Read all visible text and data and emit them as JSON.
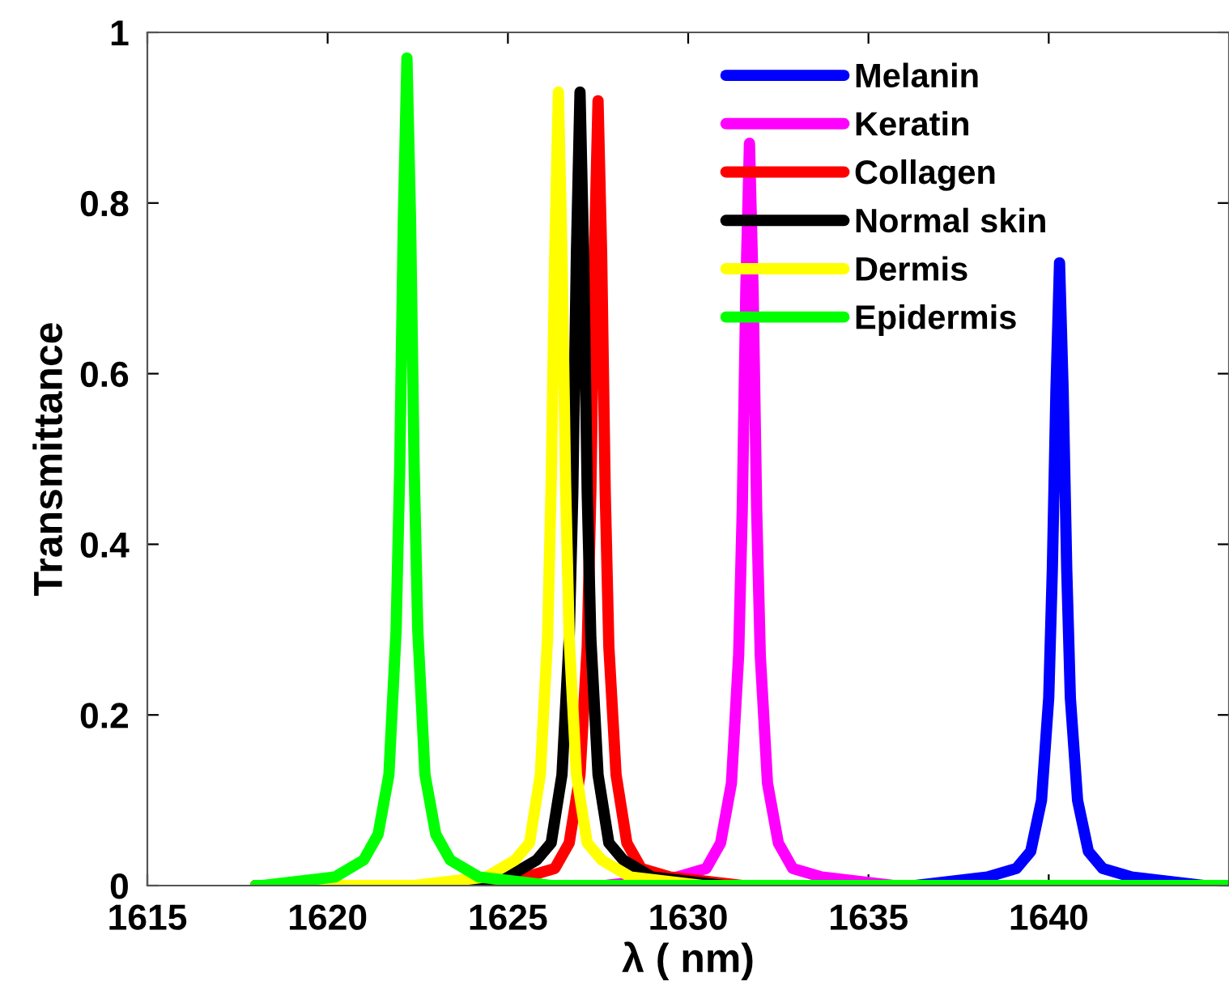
{
  "chart_data": {
    "type": "line",
    "xlabel": "λ ( nm)",
    "ylabel": "Transmittance",
    "xlim": [
      1615,
      1645
    ],
    "xticks": [
      1615,
      1620,
      1625,
      1630,
      1635,
      1640
    ],
    "ylim": [
      0,
      1
    ],
    "yticks": [
      0,
      0.2,
      0.4,
      0.6,
      0.8,
      1
    ],
    "grid": false,
    "legend": "top right",
    "line_style": "solid",
    "marker": "none",
    "series": [
      {
        "name": "Melanin",
        "color": "#0000ff",
        "x": [
          1618,
          1636.3,
          1638.3,
          1639.1,
          1639.5,
          1639.8,
          1640.0,
          1640.1,
          1640.2,
          1640.3,
          1640.4,
          1640.5,
          1640.6,
          1640.8,
          1641.1,
          1641.5,
          1642.3,
          1644.3,
          1645
        ],
        "values": [
          0,
          0.0,
          0.01,
          0.02,
          0.04,
          0.1,
          0.22,
          0.37,
          0.58,
          0.73,
          0.58,
          0.37,
          0.22,
          0.1,
          0.04,
          0.02,
          0.01,
          0.0,
          0
        ]
      },
      {
        "name": "Keratin",
        "color": "#ff00ff",
        "x": [
          1618,
          1627.7,
          1629.7,
          1630.5,
          1630.9,
          1631.2,
          1631.4,
          1631.5,
          1631.6,
          1631.7,
          1631.8,
          1631.9,
          1632.0,
          1632.2,
          1632.5,
          1632.9,
          1633.7,
          1635.7,
          1645
        ],
        "values": [
          0,
          0.0,
          0.01,
          0.02,
          0.05,
          0.12,
          0.27,
          0.44,
          0.7,
          0.87,
          0.7,
          0.44,
          0.27,
          0.12,
          0.05,
          0.02,
          0.01,
          0.0,
          0
        ]
      },
      {
        "name": "Collagen",
        "color": "#ff0000",
        "x": [
          1618,
          1623.5,
          1625.5,
          1626.3,
          1626.7,
          1627.0,
          1627.2,
          1627.3,
          1627.4,
          1627.5,
          1627.6,
          1627.7,
          1627.8,
          1628.0,
          1628.3,
          1628.7,
          1629.5,
          1631.5,
          1645
        ],
        "values": [
          0,
          0.0,
          0.01,
          0.02,
          0.05,
          0.13,
          0.28,
          0.46,
          0.74,
          0.92,
          0.74,
          0.46,
          0.28,
          0.13,
          0.05,
          0.02,
          0.01,
          0.0,
          0
        ]
      },
      {
        "name": "Normal skin",
        "color": "#000000",
        "x": [
          1618,
          1623.0,
          1625.0,
          1625.8,
          1626.2,
          1626.5,
          1626.7,
          1626.8,
          1626.9,
          1627.0,
          1627.1,
          1627.2,
          1627.3,
          1627.5,
          1627.8,
          1628.2,
          1629.0,
          1631.0,
          1645
        ],
        "values": [
          0,
          0.0,
          0.01,
          0.03,
          0.05,
          0.13,
          0.29,
          0.46,
          0.74,
          0.93,
          0.74,
          0.46,
          0.29,
          0.13,
          0.05,
          0.03,
          0.01,
          0.0,
          0
        ]
      },
      {
        "name": "Dermis",
        "color": "#ffff00",
        "x": [
          1618,
          1622.4,
          1624.4,
          1625.2,
          1625.6,
          1625.9,
          1626.1,
          1626.2,
          1626.3,
          1626.4,
          1626.5,
          1626.6,
          1626.7,
          1626.9,
          1627.2,
          1627.6,
          1628.4,
          1630.4,
          1645
        ],
        "values": [
          0,
          0.0,
          0.01,
          0.03,
          0.05,
          0.13,
          0.29,
          0.47,
          0.74,
          0.93,
          0.74,
          0.47,
          0.29,
          0.13,
          0.05,
          0.03,
          0.01,
          0.0,
          0
        ]
      },
      {
        "name": "Epidermis",
        "color": "#00ff00",
        "x": [
          1618,
          1618.2,
          1620.2,
          1621.0,
          1621.4,
          1621.7,
          1621.9,
          1622.0,
          1622.1,
          1622.2,
          1622.3,
          1622.4,
          1622.5,
          1622.7,
          1623.0,
          1623.4,
          1624.2,
          1626.2,
          1645
        ],
        "values": [
          0,
          0.0,
          0.01,
          0.03,
          0.06,
          0.13,
          0.3,
          0.49,
          0.78,
          0.97,
          0.78,
          0.49,
          0.3,
          0.13,
          0.06,
          0.03,
          0.01,
          0.0,
          0
        ]
      }
    ]
  }
}
